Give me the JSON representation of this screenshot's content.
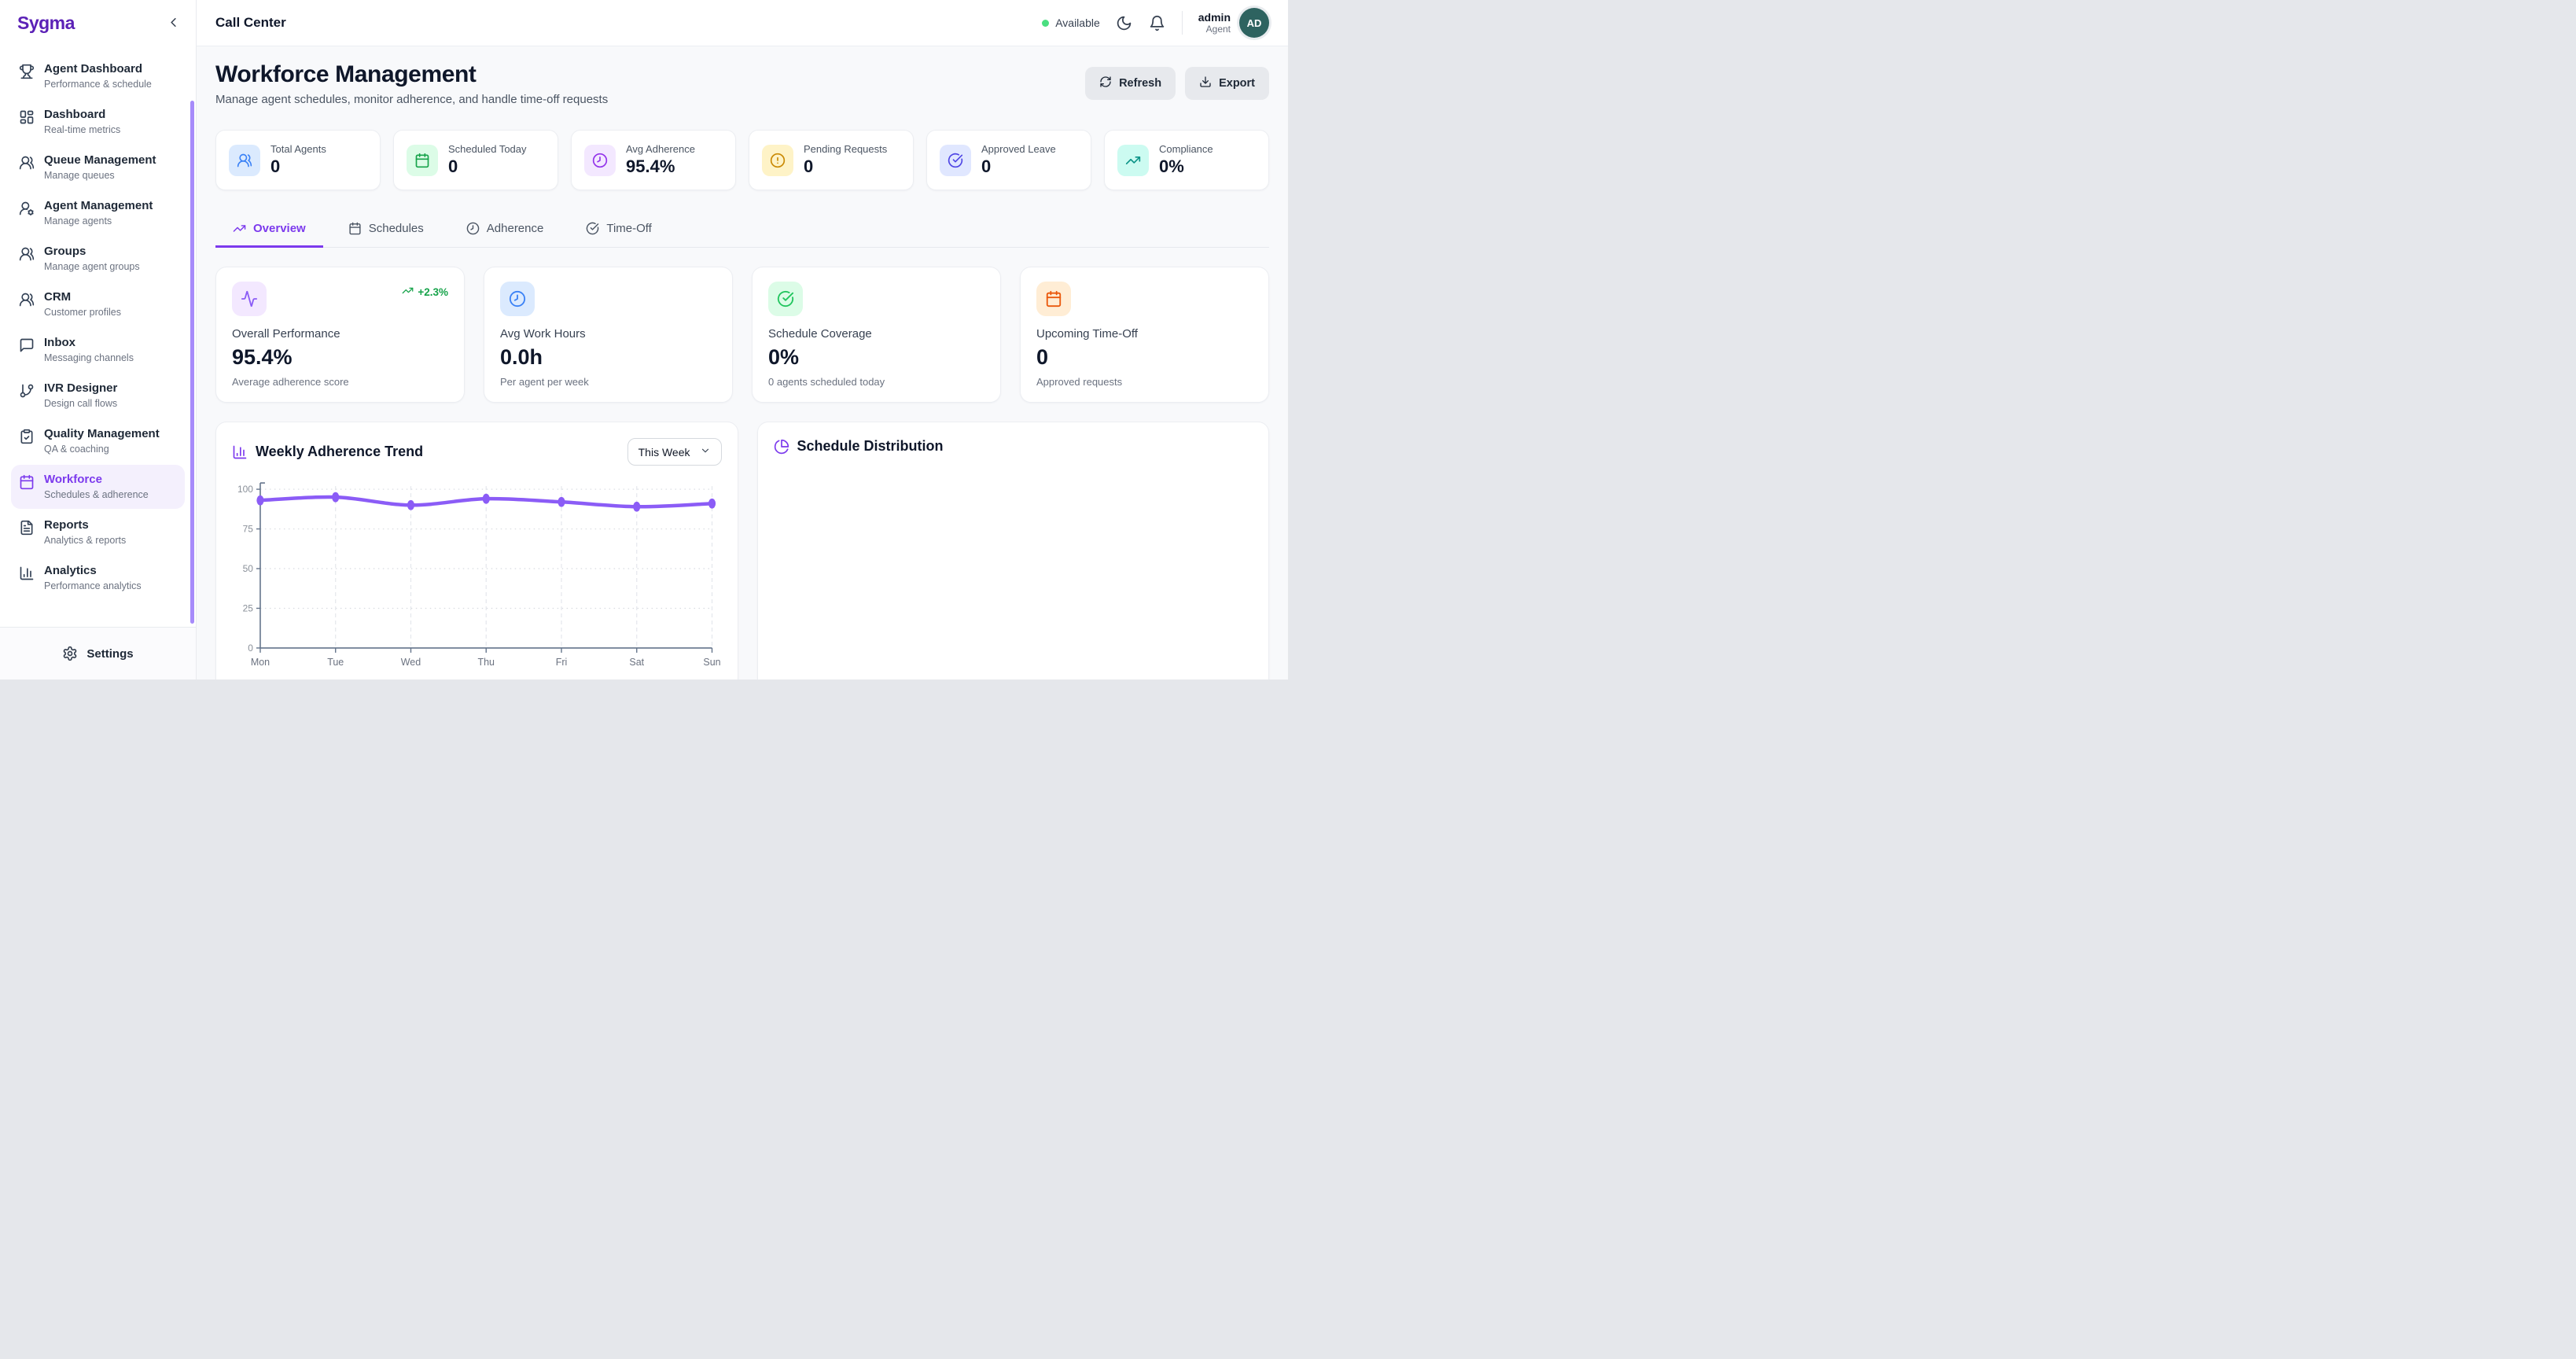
{
  "brand": {
    "logo": "Sygma"
  },
  "sidebar": {
    "items": [
      {
        "label": "Agent Dashboard",
        "sub": "Performance & schedule",
        "icon": "trophy"
      },
      {
        "label": "Dashboard",
        "sub": "Real-time metrics",
        "icon": "layout-dashboard"
      },
      {
        "label": "Queue Management",
        "sub": "Manage queues",
        "icon": "users"
      },
      {
        "label": "Agent Management",
        "sub": "Manage agents",
        "icon": "user-cog"
      },
      {
        "label": "Groups",
        "sub": "Manage agent groups",
        "icon": "users"
      },
      {
        "label": "CRM",
        "sub": "Customer profiles",
        "icon": "users"
      },
      {
        "label": "Inbox",
        "sub": "Messaging channels",
        "icon": "message-square"
      },
      {
        "label": "IVR Designer",
        "sub": "Design call flows",
        "icon": "git-branch"
      },
      {
        "label": "Quality Management",
        "sub": "QA & coaching",
        "icon": "clipboard-check"
      },
      {
        "label": "Workforce",
        "sub": "Schedules & adherence",
        "icon": "calendar",
        "active": true
      },
      {
        "label": "Reports",
        "sub": "Analytics & reports",
        "icon": "file-text"
      },
      {
        "label": "Analytics",
        "sub": "Performance analytics",
        "icon": "chart-column"
      }
    ],
    "settings_label": "Settings"
  },
  "header": {
    "title": "Call Center",
    "status_label": "Available",
    "status_color": "#4ADE80",
    "user": {
      "name": "admin",
      "role": "Agent",
      "initials": "AD",
      "avatar_color": "#2E6360"
    }
  },
  "page": {
    "title": "Workforce Management",
    "subtitle": "Manage agent schedules, monitor adherence, and handle time-off requests",
    "refresh_label": "Refresh",
    "export_label": "Export"
  },
  "stats": [
    {
      "label": "Total Agents",
      "value": "0",
      "icon": "users",
      "fg": "#3B82F6",
      "bg": "#DBEAFE"
    },
    {
      "label": "Scheduled Today",
      "value": "0",
      "icon": "calendar",
      "fg": "#16A34A",
      "bg": "#DCFCE7"
    },
    {
      "label": "Avg Adherence",
      "value": "95.4%",
      "icon": "clock",
      "fg": "#9333EA",
      "bg": "#F3E8FF"
    },
    {
      "label": "Pending Requests",
      "value": "0",
      "icon": "alert-circle",
      "fg": "#CA8A04",
      "bg": "#FEF3C7"
    },
    {
      "label": "Approved Leave",
      "value": "0",
      "icon": "check-circle",
      "fg": "#4F46E5",
      "bg": "#E0E7FF"
    },
    {
      "label": "Compliance",
      "value": "0%",
      "icon": "trending-up",
      "fg": "#0D9488",
      "bg": "#CCFBF1"
    }
  ],
  "tabs": [
    {
      "label": "Overview",
      "icon": "trending-up",
      "active": true
    },
    {
      "label": "Schedules",
      "icon": "calendar"
    },
    {
      "label": "Adherence",
      "icon": "clock"
    },
    {
      "label": "Time-Off",
      "icon": "check-circle"
    }
  ],
  "metrics": [
    {
      "label": "Overall Performance",
      "value": "95.4%",
      "sub": "Average adherence score",
      "icon": "activity",
      "fg": "#8B5CF6",
      "bg": "#F3E8FF",
      "badge": "+2.3%",
      "badge_color": "#16A34A"
    },
    {
      "label": "Avg Work Hours",
      "value": "0.0h",
      "sub": "Per agent per week",
      "icon": "clock",
      "fg": "#3B82F6",
      "bg": "#DBEAFE"
    },
    {
      "label": "Schedule Coverage",
      "value": "0%",
      "sub": "0 agents scheduled today",
      "icon": "check-circle",
      "fg": "#22C55E",
      "bg": "#DCFCE7"
    },
    {
      "label": "Upcoming Time-Off",
      "value": "0",
      "sub": "Approved requests",
      "icon": "calendar",
      "fg": "#EA580C",
      "bg": "#FFEDD5"
    }
  ],
  "panels": {
    "trend": {
      "title": "Weekly Adherence Trend",
      "icon": "chart-column",
      "select_value": "This Week"
    },
    "distribution": {
      "title": "Schedule Distribution",
      "icon": "pie-chart"
    }
  },
  "chart_data": {
    "type": "line",
    "title": "Weekly Adherence Trend",
    "x": [
      "Mon",
      "Tue",
      "Wed",
      "Thu",
      "Fri",
      "Sat",
      "Sun"
    ],
    "series": [
      {
        "name": "Adherence",
        "values": [
          93,
          95,
          90,
          94,
          92,
          89,
          91
        ]
      }
    ],
    "ylim": [
      0,
      100
    ],
    "yticks": [
      0,
      25,
      50,
      75,
      100
    ],
    "xlabel": "",
    "ylabel": "",
    "grid": true,
    "legend": false,
    "line_color": "#8B5CF6",
    "marker": "ellipse"
  }
}
